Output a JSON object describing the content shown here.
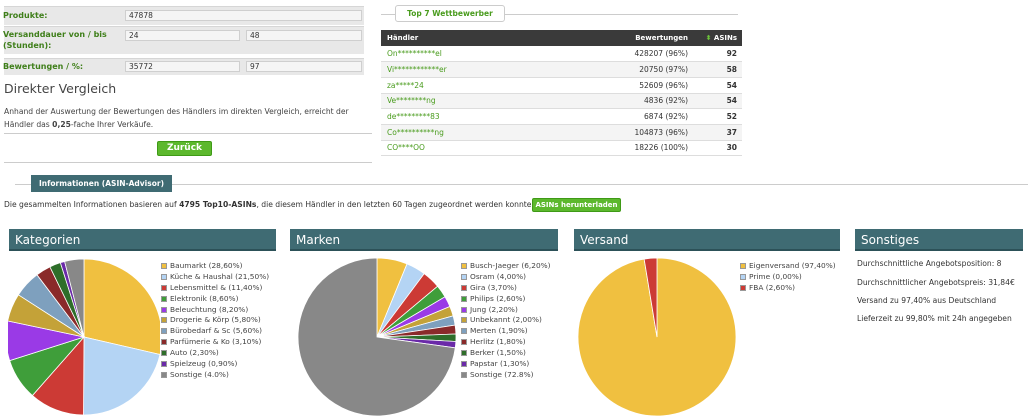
{
  "form": {
    "produkte_label": "Produkte:",
    "produkte_value": "47878",
    "dauer_label": "Versanddauer von / bis (Stunden):",
    "dauer_from": "24",
    "dauer_to": "48",
    "bewertungen_label": "Bewertungen / %:",
    "bewertungen_value": "35772",
    "bewertungen_pct": "97"
  },
  "direct": {
    "heading": "Direkter Vergleich",
    "text_before": "Anhand der Auswertung der Bewertungen des Händlers im direkten Vergleich, erreicht der Händler das ",
    "factor": "0,25",
    "text_after": "-fache Ihrer Verkäufe.",
    "back_button": "Zurück"
  },
  "top7": {
    "tab_label": "Top 7 Wettbewerber",
    "col_haendler": "Händler",
    "col_bewertungen": "Bewertungen",
    "col_asins": "ASINs",
    "rows": [
      {
        "name": "On**********el",
        "bewertungen": "428207 (96%)",
        "asins": "92"
      },
      {
        "name": "Vi************er",
        "bewertungen": "20750 (97%)",
        "asins": "58"
      },
      {
        "name": "za*****24",
        "bewertungen": "52609 (96%)",
        "asins": "54"
      },
      {
        "name": "Ve********ng",
        "bewertungen": "4836 (92%)",
        "asins": "54"
      },
      {
        "name": "de*********83",
        "bewertungen": "6874 (92%)",
        "asins": "52"
      },
      {
        "name": "Co**********ng",
        "bewertungen": "104873 (96%)",
        "asins": "37"
      },
      {
        "name": "CO****OO",
        "bewertungen": "18226 (100%)",
        "asins": "30"
      }
    ]
  },
  "info": {
    "tab_label": "Informationen (ASIN-Advisor)",
    "text_before": "Die gesammelten Informationen basieren auf ",
    "text_bold": "4795 Top10-ASINs",
    "text_after": ", die diesem Händler in den letzten 60 Tagen zugeordnet werden konnten.",
    "download_button": "ASINs herunterladen"
  },
  "kategorien": {
    "title": "Kategorien",
    "items": [
      {
        "label": "Baumarkt (28,60%)",
        "value": 28.6,
        "color": "#f0c040"
      },
      {
        "label": "Küche & Haushal (21,50%)",
        "value": 21.5,
        "color": "#b4d4f4"
      },
      {
        "label": "Lebensmittel & (11,40%)",
        "value": 11.4,
        "color": "#cc3a35"
      },
      {
        "label": "Elektronik (8,60%)",
        "value": 8.6,
        "color": "#3f9e3a"
      },
      {
        "label": "Beleuchtung (8,20%)",
        "value": 8.2,
        "color": "#9a3ae6"
      },
      {
        "label": "Drogerie & Körp (5,80%)",
        "value": 5.8,
        "color": "#c4a238"
      },
      {
        "label": "Bürobedarf & Sc (5,60%)",
        "value": 5.6,
        "color": "#7ea0be"
      },
      {
        "label": "Parfümerie & Ko (3,10%)",
        "value": 3.1,
        "color": "#8a2a2a"
      },
      {
        "label": "Auto (2,30%)",
        "value": 2.3,
        "color": "#2e6e2a"
      },
      {
        "label": "Spielzeug (0,90%)",
        "value": 0.9,
        "color": "#6a2aa8"
      },
      {
        "label": "Sonstige (4.0%)",
        "value": 4.0,
        "color": "#888888"
      }
    ]
  },
  "marken": {
    "title": "Marken",
    "items": [
      {
        "label": "Busch-Jaeger (6,20%)",
        "value": 6.2,
        "color": "#f0c040"
      },
      {
        "label": "Osram (4,00%)",
        "value": 4.0,
        "color": "#b4d4f4"
      },
      {
        "label": "Gira (3,70%)",
        "value": 3.7,
        "color": "#cc3a35"
      },
      {
        "label": "Philips (2,60%)",
        "value": 2.6,
        "color": "#3f9e3a"
      },
      {
        "label": "Jung (2,20%)",
        "value": 2.2,
        "color": "#9a3ae6"
      },
      {
        "label": "Unbekannt (2,00%)",
        "value": 2.0,
        "color": "#c4a238"
      },
      {
        "label": "Merten (1,90%)",
        "value": 1.9,
        "color": "#7ea0be"
      },
      {
        "label": "Herlitz (1,80%)",
        "value": 1.8,
        "color": "#8a2a2a"
      },
      {
        "label": "Berker (1,50%)",
        "value": 1.5,
        "color": "#2e6e2a"
      },
      {
        "label": "Papstar (1,30%)",
        "value": 1.3,
        "color": "#6a2aa8"
      },
      {
        "label": "Sonstige (72.8%)",
        "value": 72.8,
        "color": "#888888"
      }
    ]
  },
  "versand": {
    "title": "Versand",
    "items": [
      {
        "label": "Eigenversand (97,40%)",
        "value": 97.4,
        "color": "#f0c040"
      },
      {
        "label": "Prime (0,00%)",
        "value": 0.0,
        "color": "#b4d4f4"
      },
      {
        "label": "FBA (2,60%)",
        "value": 2.6,
        "color": "#cc3a35"
      }
    ]
  },
  "sonstiges": {
    "title": "Sonstiges",
    "lines": [
      "Durchschnittliche Angebotsposition: 8",
      "Durchschnittlicher Angebotspreis: 31,84€",
      "Versand zu 97,40% aus Deutschland",
      "Lieferzeit zu 99,80% mit 24h angegeben"
    ]
  }
}
